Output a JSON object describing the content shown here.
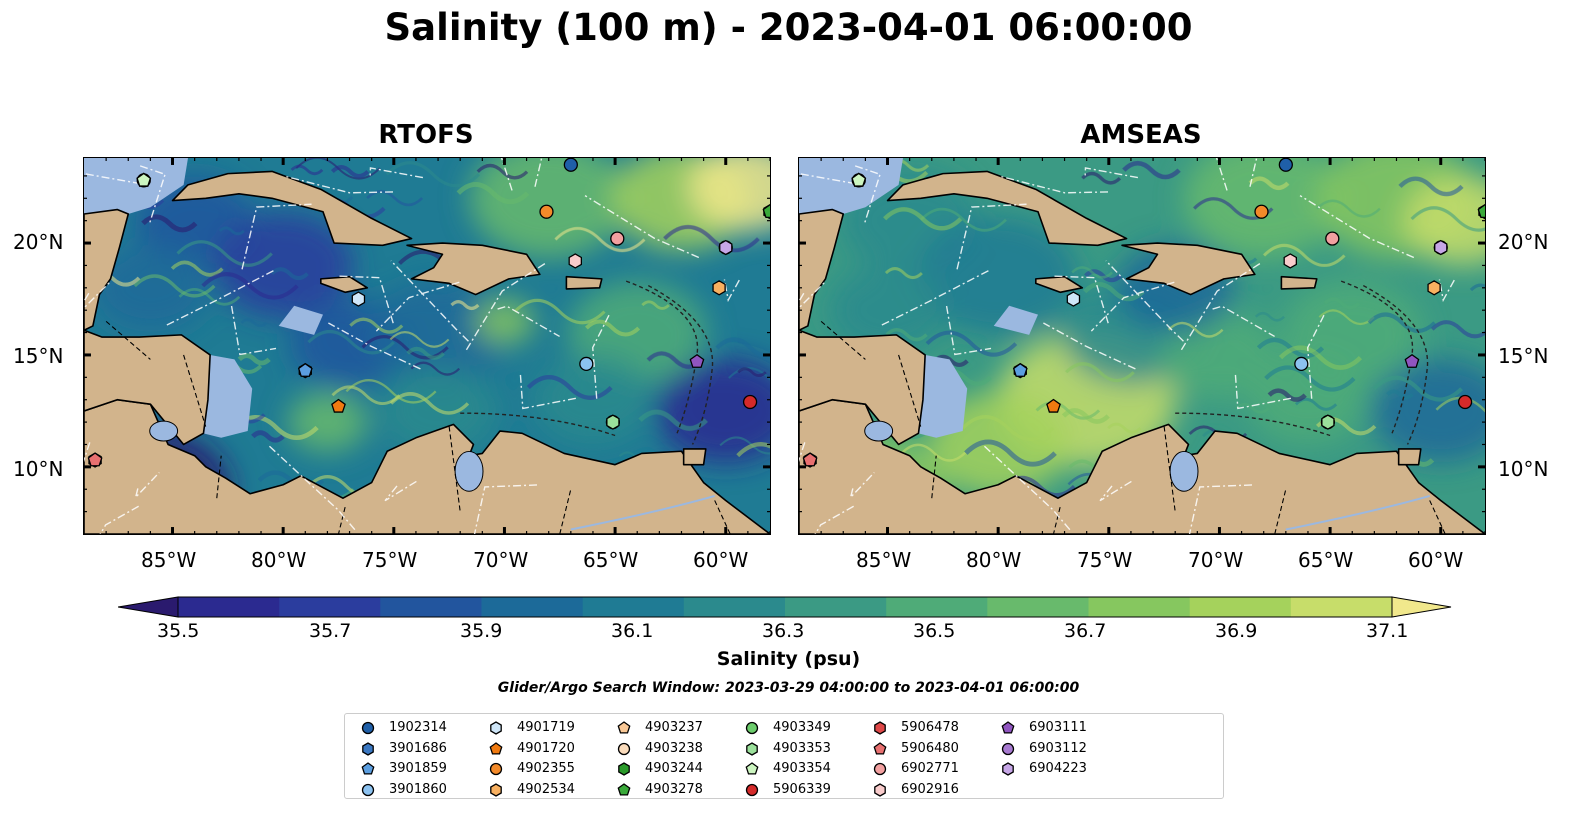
{
  "title": "Salinity (100 m) - 2023-04-01 06:00:00",
  "panels": [
    {
      "title": "RTOFS"
    },
    {
      "title": "AMSEAS"
    }
  ],
  "lon_ticks": [
    "85°W",
    "80°W",
    "75°W",
    "70°W",
    "65°W",
    "60°W"
  ],
  "lat_ticks": [
    "20°N",
    "15°N",
    "10°N"
  ],
  "colorbar": {
    "label": "Salinity (psu)",
    "ticks": [
      "35.5",
      "35.7",
      "35.9",
      "36.1",
      "36.3",
      "36.5",
      "36.7",
      "36.9",
      "37.1"
    ],
    "range": [
      35.4,
      37.2
    ],
    "extend": "both",
    "colors": [
      "#2a1a6e",
      "#2b2a90",
      "#2b3d9e",
      "#22559e",
      "#1c6a99",
      "#1f7b94",
      "#2b8a8d",
      "#3b9a84",
      "#4fab78",
      "#68ba6c",
      "#86c75f",
      "#a5d25c",
      "#c7dd6a",
      "#f1e88c"
    ]
  },
  "search_window": "Glider/Argo Search Window: 2023-03-29 04:00:00 to 2023-04-01 06:00:00",
  "legend": {
    "items": [
      {
        "label": "1902314",
        "marker": "circle",
        "color": "#1f5fa8"
      },
      {
        "label": "3901686",
        "marker": "hexagon",
        "color": "#3b78c2"
      },
      {
        "label": "3901859",
        "marker": "pentagon",
        "color": "#5b9ee0"
      },
      {
        "label": "3901860",
        "marker": "circle",
        "color": "#8cc2f0"
      },
      {
        "label": "4901719",
        "marker": "hexagon",
        "color": "#cfe6f8"
      },
      {
        "label": "4901720",
        "marker": "pentagon",
        "color": "#f07a10"
      },
      {
        "label": "4902355",
        "marker": "circle",
        "color": "#f38a2a"
      },
      {
        "label": "4902534",
        "marker": "hexagon",
        "color": "#f8b060"
      },
      {
        "label": "4903237",
        "marker": "pentagon",
        "color": "#f9c896"
      },
      {
        "label": "4903238",
        "marker": "circle",
        "color": "#fbdcbc"
      },
      {
        "label": "4903244",
        "marker": "hexagon",
        "color": "#2a9a2a"
      },
      {
        "label": "4903278",
        "marker": "pentagon",
        "color": "#3aaa3a"
      },
      {
        "label": "4903349",
        "marker": "circle",
        "color": "#6ccc6c"
      },
      {
        "label": "4903353",
        "marker": "hexagon",
        "color": "#9be09b"
      },
      {
        "label": "4903354",
        "marker": "pentagon",
        "color": "#ccf5c0"
      },
      {
        "label": "5906339",
        "marker": "circle",
        "color": "#d42a2a"
      },
      {
        "label": "5906478",
        "marker": "hexagon",
        "color": "#de4848"
      },
      {
        "label": "5906480",
        "marker": "pentagon",
        "color": "#e87070"
      },
      {
        "label": "6902771",
        "marker": "circle",
        "color": "#f2a0a0"
      },
      {
        "label": "6902916",
        "marker": "hexagon",
        "color": "#f9cccc"
      },
      {
        "label": "6903111",
        "marker": "pentagon",
        "color": "#9055c0"
      },
      {
        "label": "6903112",
        "marker": "circle",
        "color": "#a77ad0"
      },
      {
        "label": "6904223",
        "marker": "hexagon",
        "color": "#c6a6e6"
      }
    ]
  },
  "floats": [
    {
      "id": "1902314",
      "lon": -67.0,
      "lat": 23.5
    },
    {
      "id": "3901686",
      "lon": -79.0,
      "lat": 14.3
    },
    {
      "id": "3901859",
      "lon": -79.0,
      "lat": 14.3
    },
    {
      "id": "3901860",
      "lon": -66.3,
      "lat": 14.6
    },
    {
      "id": "4901719",
      "lon": -76.6,
      "lat": 17.5
    },
    {
      "id": "4901720",
      "lon": -77.5,
      "lat": 12.7
    },
    {
      "id": "4902355",
      "lon": -68.1,
      "lat": 21.4
    },
    {
      "id": "4902534",
      "lon": -60.3,
      "lat": 18.0
    },
    {
      "id": "4903237",
      "lon": -86.3,
      "lat": 22.8
    },
    {
      "id": "4903238",
      "lon": -86.3,
      "lat": 22.8
    },
    {
      "id": "4903244",
      "lon": -58.0,
      "lat": 21.4
    },
    {
      "id": "4903278",
      "lon": -58.0,
      "lat": 21.4
    },
    {
      "id": "4903349",
      "lon": -65.1,
      "lat": 12.0
    },
    {
      "id": "4903353",
      "lon": -65.1,
      "lat": 12.0
    },
    {
      "id": "4903354",
      "lon": -86.3,
      "lat": 22.8
    },
    {
      "id": "5906339",
      "lon": -58.9,
      "lat": 12.9
    },
    {
      "id": "5906478",
      "lon": -88.5,
      "lat": 10.3
    },
    {
      "id": "5906480",
      "lon": -88.5,
      "lat": 10.3
    },
    {
      "id": "6902771",
      "lon": -64.9,
      "lat": 20.2
    },
    {
      "id": "6902916",
      "lon": -66.8,
      "lat": 19.2
    },
    {
      "id": "6903111",
      "lon": -61.3,
      "lat": 14.7
    },
    {
      "id": "6903112",
      "lon": -60.0,
      "lat": 19.8
    },
    {
      "id": "6904223",
      "lon": -60.0,
      "lat": 19.8
    }
  ],
  "amseas_marker_color_override": {
    "6903111": "#9055c0",
    "4903237": "#ccf5c0"
  }
}
